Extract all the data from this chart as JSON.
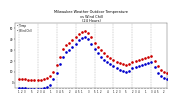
{
  "title": "Milwaukee Weather Outdoor Temperature",
  "title2": "vs Wind Chill",
  "title3": "(24 Hours)",
  "background_color": "#ffffff",
  "grid_color": "#888888",
  "temp_color": "#cc0000",
  "windchill_color": "#0000cc",
  "ylim": [
    -5,
    55
  ],
  "yticks": [
    0,
    10,
    20,
    30,
    40,
    50
  ],
  "xlim": [
    0,
    48
  ],
  "hours": [
    1,
    2,
    3,
    4,
    5,
    6,
    7,
    8,
    9,
    10,
    11,
    12,
    13,
    14,
    15,
    16,
    17,
    18,
    19,
    20,
    21,
    22,
    23,
    24,
    25,
    26,
    27,
    28,
    29,
    30,
    31,
    32,
    33,
    34,
    35,
    36,
    37,
    38,
    39,
    40,
    41,
    42,
    43,
    44,
    45,
    46,
    47,
    48
  ],
  "temp": [
    3,
    3,
    3,
    2,
    2,
    2,
    2,
    2,
    3,
    4,
    6,
    10,
    16,
    24,
    31,
    35,
    37,
    39,
    42,
    45,
    47,
    48,
    46,
    42,
    37,
    33,
    30,
    27,
    25,
    23,
    21,
    19,
    18,
    17,
    16,
    17,
    19,
    20,
    21,
    22,
    23,
    24,
    25,
    20,
    15,
    12,
    10,
    9
  ],
  "windchill": [
    -5,
    -5,
    -5,
    -6,
    -6,
    -6,
    -6,
    -6,
    -5,
    -4,
    -2,
    3,
    9,
    17,
    24,
    28,
    30,
    33,
    36,
    39,
    41,
    42,
    40,
    36,
    31,
    27,
    24,
    21,
    19,
    17,
    15,
    13,
    12,
    11,
    10,
    11,
    13,
    14,
    15,
    16,
    17,
    18,
    19,
    14,
    9,
    6,
    4,
    3
  ],
  "windchill_line_x": [
    5,
    12
  ],
  "windchill_line_y": [
    -5,
    -5
  ],
  "vgrid_x": [
    1,
    7,
    13,
    19,
    25,
    31,
    37,
    43
  ],
  "xtick_positions": [
    1,
    2,
    3,
    4,
    5,
    6,
    7,
    8,
    9,
    10,
    11,
    12,
    13,
    14,
    15,
    16,
    17,
    18,
    19,
    20,
    21,
    22,
    23,
    24,
    25,
    26,
    27,
    28,
    29,
    30,
    31,
    32,
    33,
    34,
    35,
    36,
    37,
    38,
    39,
    40,
    41,
    42,
    43,
    44,
    45,
    46,
    47,
    48
  ],
  "xtick_labels": [
    "1",
    "2",
    "3",
    "4",
    "5",
    "1",
    "2",
    "3",
    "4",
    "5",
    "1",
    "2",
    "3",
    "4",
    "5",
    "1",
    "2",
    "3",
    "4",
    "5",
    "1",
    "2",
    "3",
    "4",
    "5",
    "1",
    "2",
    "3",
    "4",
    "5",
    "1",
    "2",
    "3",
    "4",
    "5",
    "1",
    "2",
    "3",
    "4",
    "5",
    "1",
    "2",
    "3",
    "4",
    "5",
    "1",
    "2",
    "3"
  ]
}
